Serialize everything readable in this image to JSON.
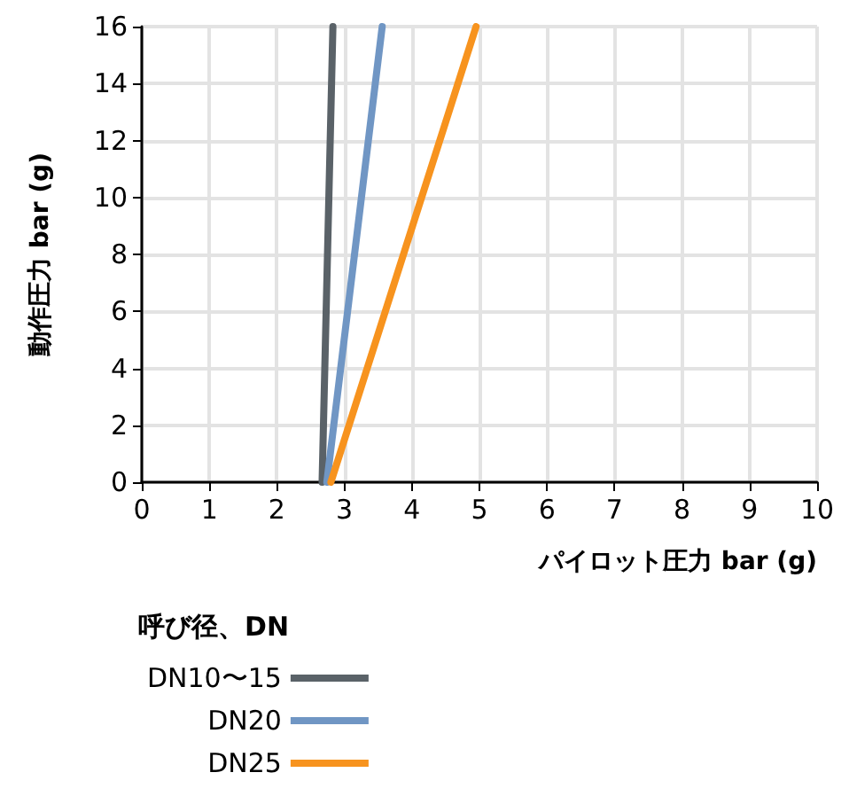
{
  "chart_data": {
    "type": "line",
    "xlabel": "パイロット圧力 bar (g)",
    "ylabel": "動作圧力 bar (g)",
    "legend_title": "呼び径、DN",
    "xlim": [
      0,
      10
    ],
    "xticks": [
      0,
      1,
      2,
      3,
      4,
      5,
      6,
      7,
      8,
      9,
      10
    ],
    "ylim": [
      0,
      16
    ],
    "yticks": [
      0,
      2,
      4,
      6,
      8,
      10,
      12,
      14,
      16
    ],
    "grid": true,
    "legend": "bottom left",
    "marker": "none",
    "line_style": "solid",
    "series": [
      {
        "name": "DN10〜15",
        "color": "#5a6268",
        "x": [
          2.67,
          2.83
        ],
        "values": [
          0,
          16
        ]
      },
      {
        "name": "DN20",
        "color": "#7096c4",
        "x": [
          2.74,
          3.56
        ],
        "values": [
          0,
          16
        ]
      },
      {
        "name": "DN25",
        "color": "#f7931e",
        "x": [
          2.8,
          4.95
        ],
        "values": [
          0,
          16
        ]
      }
    ]
  }
}
